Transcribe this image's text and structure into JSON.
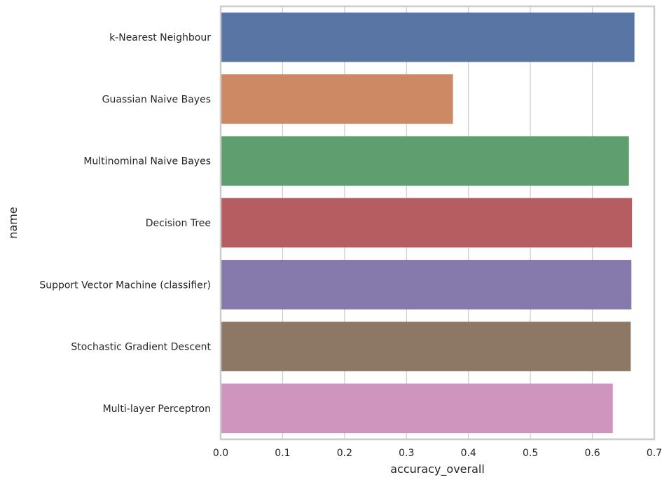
{
  "chart_data": {
    "type": "bar",
    "orientation": "horizontal",
    "categories": [
      "k-Nearest Neighbour",
      "Guassian Naive Bayes",
      "Multinominal Naive Bayes",
      "Decision Tree",
      "Support Vector Machine (classifier)",
      "Stochastic Gradient Descent",
      "Multi-layer Perceptron"
    ],
    "values": [
      0.668,
      0.375,
      0.659,
      0.664,
      0.663,
      0.662,
      0.633
    ],
    "colors": [
      "#5875a4",
      "#cc8963",
      "#5f9e6e",
      "#b55d60",
      "#857aab",
      "#8d7866",
      "#d095bf"
    ],
    "xlabel": "accuracy_overall",
    "ylabel": "name",
    "xlim": [
      0,
      0.7
    ],
    "xticks": [
      "0.0",
      "0.1",
      "0.2",
      "0.3",
      "0.4",
      "0.5",
      "0.6",
      "0.7"
    ],
    "grid": "vertical",
    "legend": "none"
  }
}
